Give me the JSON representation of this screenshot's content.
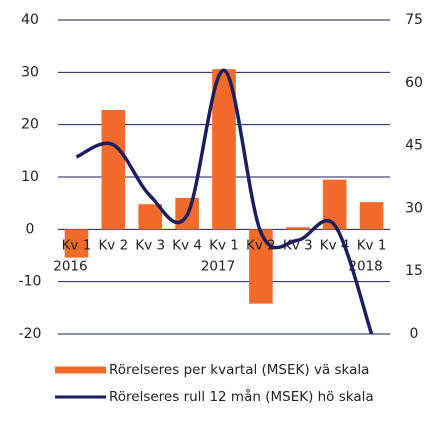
{
  "chart_data": {
    "type": "bar-line",
    "categories": [
      "Kv 1",
      "Kv 2",
      "Kv 3",
      "Kv 4",
      "Kv 1",
      "Kv 2",
      "Kv 3",
      "Kv 4",
      "Kv 1"
    ],
    "category_years": [
      "2016",
      null,
      null,
      null,
      "2017",
      null,
      null,
      null,
      "2018"
    ],
    "series": [
      {
        "name": "Rörelseres per kvartal (MSEK) vä skala",
        "type": "bar",
        "color": "#f26b2a",
        "axis": "y",
        "values": [
          -5.4,
          22.8,
          4.8,
          6.0,
          30.6,
          -14.2,
          0.4,
          9.5,
          5.2
        ]
      },
      {
        "name": "Rörelseres rull 12 mån (MSEK) hö skala",
        "type": "line",
        "color": "#1c1f5e",
        "axis": "y2",
        "values": [
          42.3,
          45.2,
          33.0,
          28.4,
          63.0,
          24.3,
          22.4,
          26.0,
          0
        ]
      }
    ],
    "ylim": [
      -20,
      40
    ],
    "yticks": [
      -20,
      -10,
      0,
      10,
      20,
      30,
      40
    ],
    "y2lim": [
      0,
      75
    ],
    "y2ticks": [
      0,
      15,
      30,
      45,
      60,
      75
    ],
    "grid": true,
    "legend": "bottom"
  }
}
